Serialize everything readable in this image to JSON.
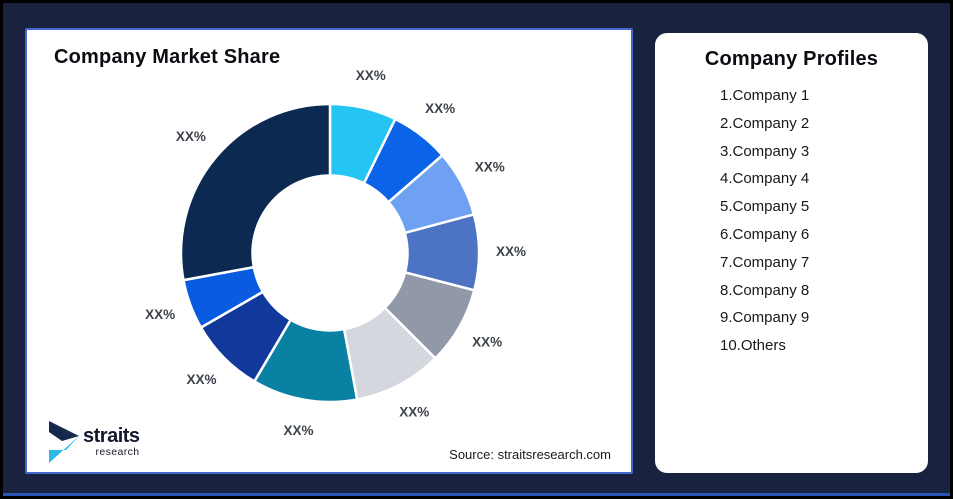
{
  "page": {
    "background_color": "#192340",
    "frame_border_color": "#000000",
    "bottom_accent_color": "#2B55B4"
  },
  "left_card": {
    "title": "Company Market Share",
    "border_color": "#4468CC",
    "source": "Source: straitsresearch.com",
    "logo": {
      "name": "straits",
      "sub": "research"
    }
  },
  "right_card": {
    "title": "Company Profiles",
    "items": [
      {
        "rank": "1",
        "name": "Company 1"
      },
      {
        "rank": "2",
        "name": "Company 2"
      },
      {
        "rank": "3",
        "name": "Company 3"
      },
      {
        "rank": "4",
        "name": "Company 4"
      },
      {
        "rank": "5",
        "name": "Company 5"
      },
      {
        "rank": "6",
        "name": "Company 6"
      },
      {
        "rank": "7",
        "name": "Company 7"
      },
      {
        "rank": "8",
        "name": "Company 8"
      },
      {
        "rank": "9",
        "name": "Company 9"
      },
      {
        "rank": "10",
        "name": "Others"
      }
    ]
  },
  "chart_data": {
    "type": "pie",
    "subtype": "donut",
    "title": "Company Market Share",
    "source": "Source: straitsresearch.com",
    "start_angle_deg": 0,
    "direction": "clockwise",
    "inner_radius_ratio": 0.52,
    "legend_position": "none",
    "slices": [
      {
        "label": "XX%",
        "arc_deg": 26.0,
        "approx_percent": 7.2,
        "color": "#25C5F3"
      },
      {
        "label": "XX%",
        "arc_deg": 23.0,
        "approx_percent": 6.4,
        "color": "#0B63E8"
      },
      {
        "label": "XX%",
        "arc_deg": 26.0,
        "approx_percent": 7.2,
        "color": "#6FA1F2"
      },
      {
        "label": "XX%",
        "arc_deg": 29.5,
        "approx_percent": 8.2,
        "color": "#4D73C4"
      },
      {
        "label": "XX%",
        "arc_deg": 30.5,
        "approx_percent": 8.5,
        "color": "#9199A8"
      },
      {
        "label": "XX%",
        "arc_deg": 34.5,
        "approx_percent": 9.6,
        "color": "#D4D7DD"
      },
      {
        "label": "XX%",
        "arc_deg": 41.0,
        "approx_percent": 11.4,
        "color": "#0A81A3"
      },
      {
        "label": "XX%",
        "arc_deg": 29.5,
        "approx_percent": 8.2,
        "color": "#11389B"
      },
      {
        "label": "XX%",
        "arc_deg": 19.5,
        "approx_percent": 5.4,
        "color": "#0B5BE0"
      },
      {
        "label": "XX%",
        "arc_deg": 100.5,
        "approx_percent": 27.9,
        "color": "#0C2951"
      }
    ]
  }
}
